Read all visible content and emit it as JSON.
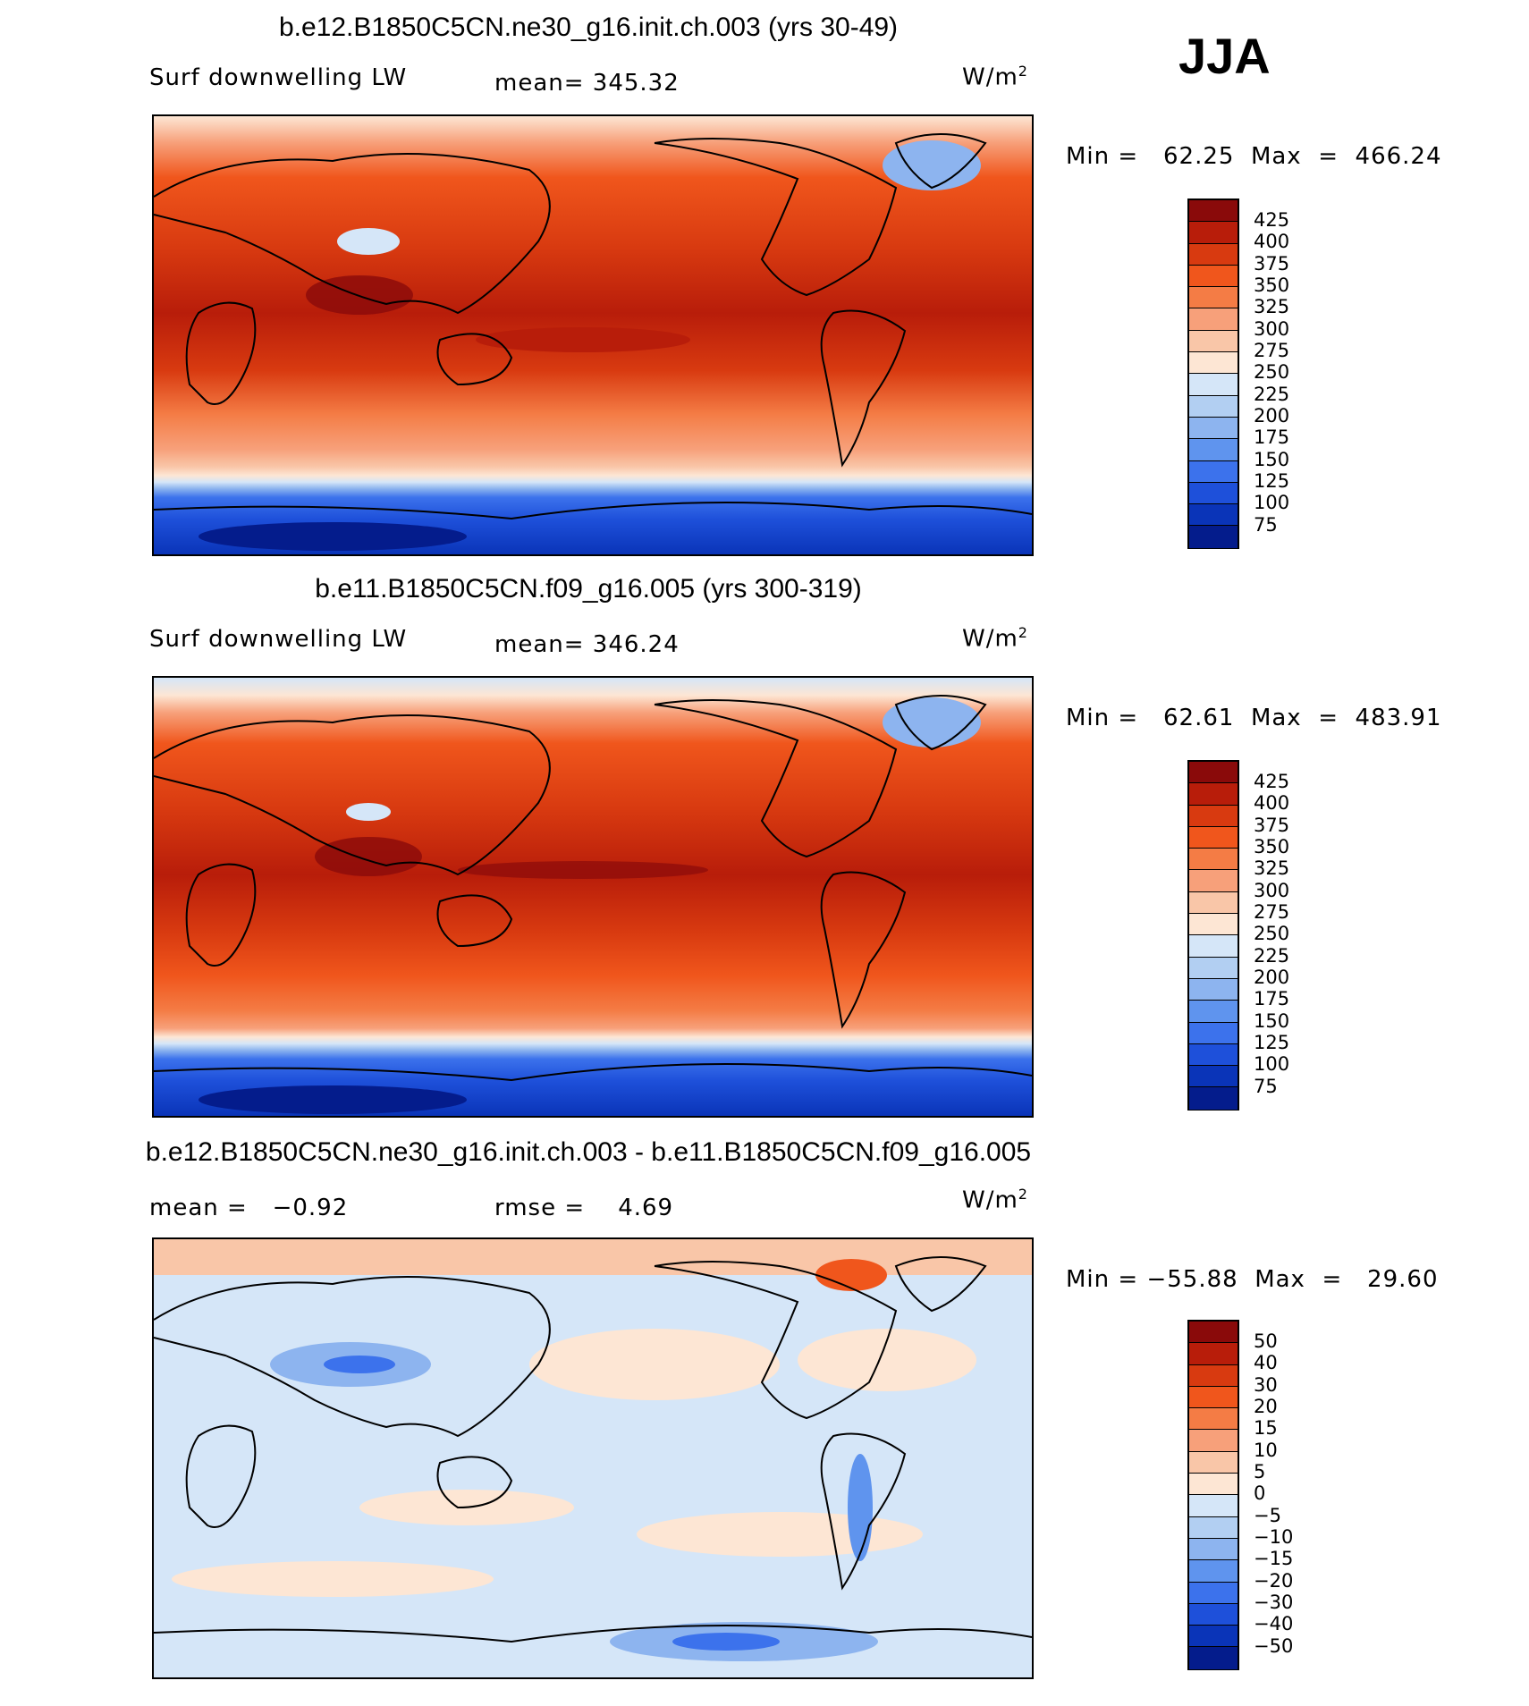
{
  "season": "JJA",
  "panels": [
    {
      "title": "b.e12.B1850C5CN.ne30_g16.init.ch.003 (yrs 30-49)",
      "left_label": "Surf downwelling LW",
      "mean_text": "mean= 345.32",
      "units": "W/m",
      "units_sup": "2",
      "minmax": "Min =   62.25  Max  =  466.24",
      "colorbar": {
        "colors": [
          "#8a0a0a",
          "#b81d0a",
          "#d83a10",
          "#f0561c",
          "#f47c45",
          "#f7a07a",
          "#f9c6a8",
          "#fde6d4",
          "#d5e6f8",
          "#b2cff2",
          "#8db4ef",
          "#5f94ee",
          "#3c72ec",
          "#1e50da",
          "#0a34b8",
          "#041c8c"
        ],
        "labels": [
          "425",
          "400",
          "375",
          "350",
          "325",
          "300",
          "275",
          "250",
          "225",
          "200",
          "175",
          "150",
          "125",
          "100",
          "75"
        ]
      }
    },
    {
      "title": "b.e11.B1850C5CN.f09_g16.005 (yrs 300-319)",
      "left_label": "Surf downwelling LW",
      "mean_text": "mean= 346.24",
      "units": "W/m",
      "units_sup": "2",
      "minmax": "Min =   62.61  Max  =  483.91",
      "colorbar": {
        "colors": [
          "#8a0a0a",
          "#b81d0a",
          "#d83a10",
          "#f0561c",
          "#f47c45",
          "#f7a07a",
          "#f9c6a8",
          "#fde6d4",
          "#d5e6f8",
          "#b2cff2",
          "#8db4ef",
          "#5f94ee",
          "#3c72ec",
          "#1e50da",
          "#0a34b8",
          "#041c8c"
        ],
        "labels": [
          "425",
          "400",
          "375",
          "350",
          "325",
          "300",
          "275",
          "250",
          "225",
          "200",
          "175",
          "150",
          "125",
          "100",
          "75"
        ]
      }
    },
    {
      "title": "b.e12.B1850C5CN.ne30_g16.init.ch.003 - b.e11.B1850C5CN.f09_g16.005",
      "left_label": "mean =   −0.92",
      "mean_text": "rmse =    4.69",
      "units": "W/m",
      "units_sup": "2",
      "minmax": "Min = −55.88  Max  =   29.60",
      "colorbar": {
        "colors": [
          "#8a0a0a",
          "#b81d0a",
          "#d83a10",
          "#f0561c",
          "#f47c45",
          "#f7a07a",
          "#f9c6a8",
          "#fde6d4",
          "#d5e6f8",
          "#b2cff2",
          "#8db4ef",
          "#5f94ee",
          "#3c72ec",
          "#1e50da",
          "#0a34b8",
          "#041c8c"
        ],
        "labels": [
          "50",
          "40",
          "30",
          "20",
          "15",
          "10",
          "5",
          "0",
          "−5",
          "−10",
          "−15",
          "−20",
          "−30",
          "−40",
          "−50"
        ]
      }
    }
  ]
}
